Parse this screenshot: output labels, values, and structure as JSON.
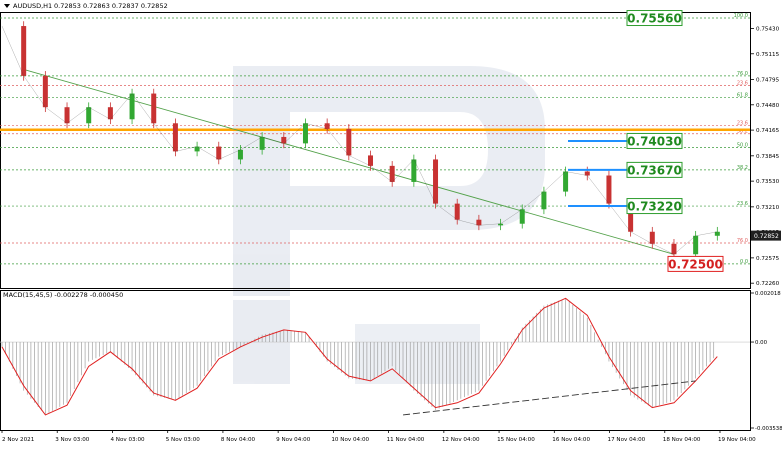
{
  "header": {
    "symbol": "AUDUSD,H1",
    "ohlc": "0.72853 0.72863 0.72837 0.72852"
  },
  "colors": {
    "bull": "#32a832",
    "bear": "#c83232",
    "trend": "#54a24b",
    "fibo_green": "#3b9b3b",
    "fibo_red": "#e06060",
    "key_level": "#ffa500",
    "target_line": "#1e90ff",
    "macd_signal": "#e02020",
    "macd_hist": "#a0a0a0",
    "label_green_border": "#2e9d2e",
    "label_red_border": "#e02020"
  },
  "chart_data": [
    {
      "type": "line",
      "title": "",
      "subtitle": "AUDUSD,H1 0.72853 0.72863 0.72837 0.72852",
      "ylim": [
        0.72225,
        0.7561
      ],
      "x_ticks": [
        "2 Nov 2021",
        "3 Nov 03:00",
        "4 Nov 03:00",
        "5 Nov 03:00",
        "8 Nov 04:00",
        "9 Nov 04:00",
        "10 Nov 04:00",
        "11 Nov 04:00",
        "12 Nov 04:00",
        "15 Nov 04:00",
        "16 Nov 04:00",
        "17 Nov 04:00",
        "18 Nov 04:00",
        "19 Nov 04:00"
      ],
      "y_ticks": [
        "0.75430",
        "0.75115",
        "0.74795",
        "0.74480",
        "0.74165",
        "0.73845",
        "0.73530",
        "0.73210",
        "0.72895",
        "0.72575",
        "0.72260"
      ],
      "price_series": {
        "name": "",
        "x": [
          0,
          4,
          8,
          12,
          16,
          20,
          24,
          28,
          32,
          36,
          40,
          44,
          48,
          52,
          56,
          60,
          64,
          68,
          72,
          76,
          80,
          84,
          88,
          92,
          96,
          100,
          104,
          108,
          112,
          116,
          120,
          124,
          128,
          132
        ],
        "y": [
          0.7546,
          0.7484,
          0.7445,
          0.7425,
          0.7445,
          0.743,
          0.7462,
          0.7425,
          0.739,
          0.7396,
          0.738,
          0.7392,
          0.7408,
          0.74,
          0.7425,
          0.7418,
          0.7385,
          0.7372,
          0.7352,
          0.738,
          0.7325,
          0.7305,
          0.7298,
          0.73,
          0.7318,
          0.734,
          0.7365,
          0.736,
          0.7325,
          0.729,
          0.7275,
          0.7262,
          0.7285,
          0.729
        ]
      },
      "current_price": "0.72852",
      "trend_line": {
        "from": [
          4,
          0.7492
        ],
        "to": [
          124,
          0.7262
        ]
      },
      "fibonacci_levels": [
        {
          "label": "100.0",
          "value": 0.7556,
          "color": "#3b9b3b"
        },
        {
          "label": "76.0",
          "value": 0.7484,
          "color": "#3b9b3b"
        },
        {
          "label": "23.6",
          "value": 0.7472,
          "color": "#e06060"
        },
        {
          "label": "61.8",
          "value": 0.7457,
          "color": "#3b9b3b"
        },
        {
          "label": "23.6",
          "value": 0.7422,
          "color": "#e06060"
        },
        {
          "label": "38.2",
          "value": 0.7412,
          "color": "#e06060"
        },
        {
          "label": "50.0",
          "value": 0.7395,
          "color": "#3b9b3b"
        },
        {
          "label": "38.2",
          "value": 0.7367,
          "color": "#3b9b3b"
        },
        {
          "label": "23.6",
          "value": 0.7322,
          "color": "#3b9b3b"
        },
        {
          "label": "76.0",
          "value": 0.7276,
          "color": "#e06060"
        },
        {
          "label": "0.0",
          "value": 0.725,
          "color": "#3b9b3b"
        }
      ],
      "key_levels": [
        0.7417
      ],
      "annotations": [
        {
          "text": "0.75560",
          "value": 0.7556,
          "style": "green"
        },
        {
          "text": "0.74030",
          "value": 0.7403,
          "style": "green"
        },
        {
          "text": "0.73670",
          "value": 0.7367,
          "style": "green"
        },
        {
          "text": "0.73220",
          "value": 0.7322,
          "style": "green"
        },
        {
          "text": "0.72500",
          "value": 0.725,
          "style": "red"
        }
      ]
    },
    {
      "type": "bar",
      "title": "MACD(15,45,5) -0.002278 -0.000450",
      "ylim": [
        -0.003538,
        0.002018
      ],
      "y_ticks": [
        "0.002018",
        "0.00",
        "-0.003538"
      ],
      "histogram": {
        "name": "",
        "x": [
          0,
          4,
          8,
          12,
          16,
          20,
          24,
          28,
          32,
          36,
          40,
          44,
          48,
          52,
          56,
          60,
          64,
          68,
          72,
          76,
          80,
          84,
          88,
          92,
          96,
          100,
          104,
          108,
          112,
          116,
          120,
          124,
          128,
          132
        ],
        "y": [
          -0.0002,
          -0.002,
          -0.003,
          -0.0025,
          -0.0008,
          -0.0004,
          -0.0012,
          -0.0022,
          -0.0024,
          -0.0018,
          -0.0006,
          -0.0002,
          0.0003,
          0.0005,
          0.0004,
          -0.0008,
          -0.0015,
          -0.0016,
          -0.001,
          -0.002,
          -0.0028,
          -0.0024,
          -0.002,
          -0.0008,
          0.0006,
          0.0015,
          0.0018,
          0.001,
          -0.0008,
          -0.0022,
          -0.0027,
          -0.0024,
          -0.0015,
          -0.0005
        ]
      },
      "signal": {
        "name": "",
        "x": [
          0,
          4,
          8,
          12,
          16,
          20,
          24,
          28,
          32,
          36,
          40,
          44,
          48,
          52,
          56,
          60,
          64,
          68,
          72,
          76,
          80,
          84,
          88,
          92,
          96,
          100,
          104,
          108,
          112,
          116,
          120,
          124,
          128,
          132
        ],
        "y": [
          -0.0002,
          -0.0018,
          -0.003,
          -0.0026,
          -0.001,
          -0.0004,
          -0.0011,
          -0.0021,
          -0.0024,
          -0.0019,
          -0.0007,
          -0.0002,
          0.0002,
          0.0005,
          0.0004,
          -0.0007,
          -0.0014,
          -0.0016,
          -0.0011,
          -0.0019,
          -0.0027,
          -0.0025,
          -0.0021,
          -0.0009,
          0.0005,
          0.0014,
          0.0018,
          0.0011,
          -0.0006,
          -0.002,
          -0.0027,
          -0.0025,
          -0.0016,
          -0.0006
        ]
      },
      "divergence_line": {
        "from": [
          74,
          -0.003
        ],
        "to": [
          128,
          -0.0016
        ]
      }
    }
  ]
}
